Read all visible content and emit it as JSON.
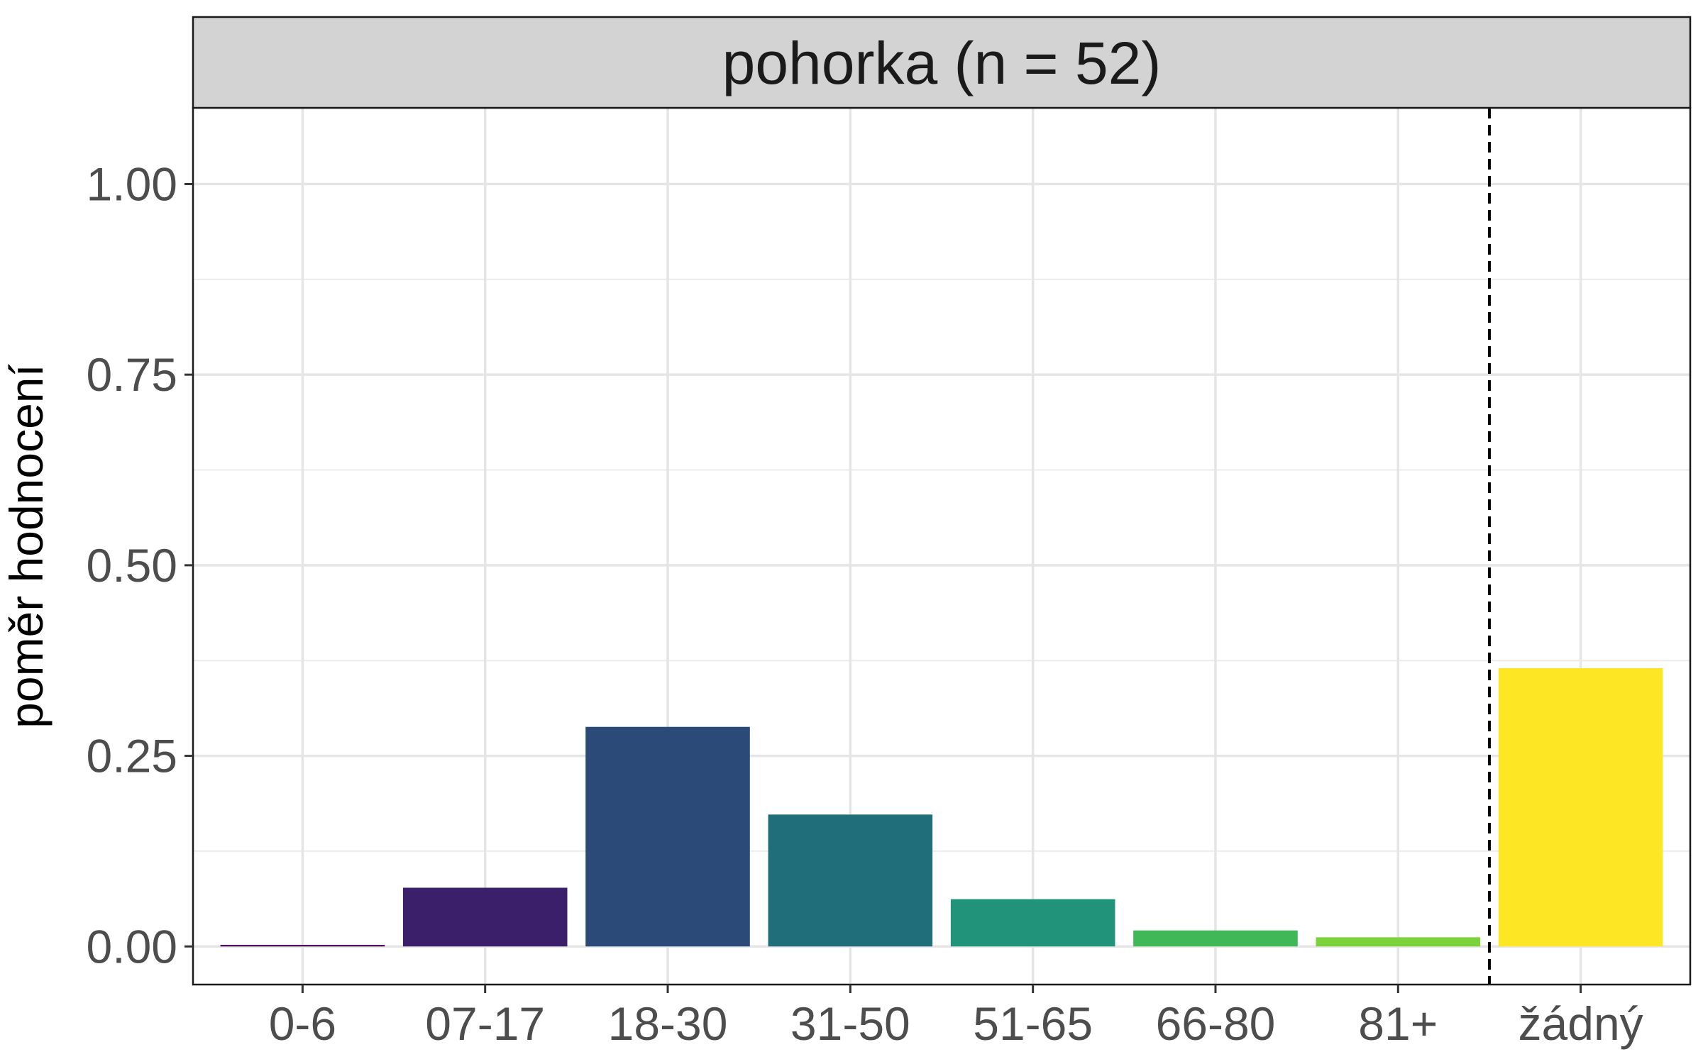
{
  "chart_data": {
    "type": "bar",
    "facet_label": "pohorka (n = 52)",
    "xlabel": "",
    "ylabel": "poměr hodnocení",
    "ylim": [
      -0.05,
      1.1
    ],
    "y_ticks": [
      0,
      0.25,
      0.5,
      0.75,
      1
    ],
    "y_tick_labels": [
      "0.00",
      "0.25",
      "0.50",
      "0.75",
      "1.00"
    ],
    "categories": [
      "0-6",
      "07-17",
      "18-30",
      "31-50",
      "51-65",
      "66-80",
      "81+",
      "žádný"
    ],
    "values": [
      0.002,
      0.077,
      0.288,
      0.173,
      0.062,
      0.021,
      0.012,
      0.365
    ],
    "colors": [
      "#440154",
      "#3B1F6A",
      "#2C4A78",
      "#206E7A",
      "#21937A",
      "#40B858",
      "#7CD23B",
      "#FDE725"
    ],
    "reference_line": {
      "between_categories": [
        "81+",
        "žádný"
      ],
      "style": "dashed",
      "color": "#000000"
    },
    "grid": true,
    "legend": "none",
    "strip_background": "#d3d3d3"
  }
}
